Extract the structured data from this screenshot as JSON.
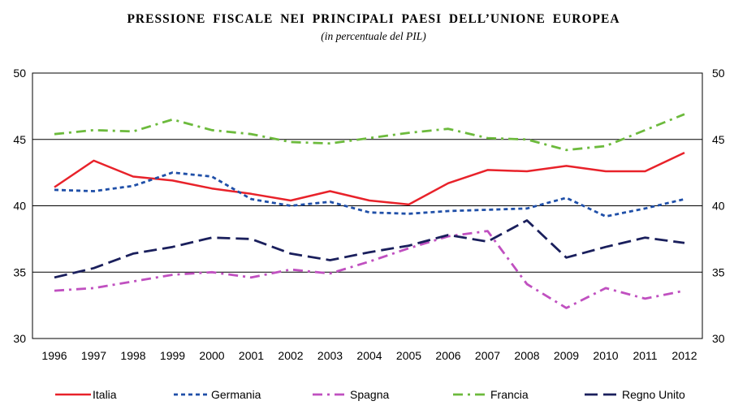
{
  "chart_data": {
    "type": "line",
    "title": "PRESSIONE FISCALE NEI PRINCIPALI PAESI DELL’UNIONE EUROPEA",
    "subtitle": "(in percentuale del PIL)",
    "xlabel": "",
    "ylabel": "",
    "ylim": [
      30,
      50
    ],
    "yticks": [
      "30",
      "35",
      "40",
      "45",
      "50"
    ],
    "categories": [
      "1996",
      "1997",
      "1998",
      "1999",
      "2000",
      "2001",
      "2002",
      "2003",
      "2004",
      "2005",
      "2006",
      "2007",
      "2008",
      "2009",
      "2010",
      "2011",
      "2012"
    ],
    "grid": "horizontal at 35, 40, 45",
    "dual_y_axis": true,
    "legend_position": "bottom",
    "series": [
      {
        "name": "Italia",
        "color": "#e8222a",
        "dash": "solid",
        "values": [
          41.4,
          43.4,
          42.2,
          41.9,
          41.3,
          40.9,
          40.4,
          41.1,
          40.4,
          40.1,
          41.7,
          42.7,
          42.6,
          43.0,
          42.6,
          42.6,
          44.0
        ]
      },
      {
        "name": "Germania",
        "color": "#1f4fa8",
        "dash": "dotted",
        "values": [
          41.2,
          41.1,
          41.5,
          42.5,
          42.2,
          40.5,
          40.0,
          40.3,
          39.5,
          39.4,
          39.6,
          39.7,
          39.8,
          40.6,
          39.2,
          39.8,
          40.5
        ]
      },
      {
        "name": "Spagna",
        "color": "#c050c0",
        "dash": "dash-dot",
        "values": [
          33.6,
          33.8,
          34.3,
          34.8,
          35.0,
          34.6,
          35.2,
          34.9,
          35.8,
          36.8,
          37.7,
          38.1,
          34.1,
          32.3,
          33.8,
          33.0,
          33.6
        ]
      },
      {
        "name": "Francia",
        "color": "#6cba3c",
        "dash": "dash-dot",
        "values": [
          45.4,
          45.7,
          45.6,
          46.5,
          45.7,
          45.4,
          44.8,
          44.7,
          45.1,
          45.5,
          45.8,
          45.1,
          45.0,
          44.2,
          44.5,
          45.7,
          46.9
        ]
      },
      {
        "name": "Regno Unito",
        "color": "#1a1f5c",
        "dash": "long-dash",
        "values": [
          34.6,
          35.3,
          36.4,
          36.9,
          37.6,
          37.5,
          36.4,
          35.9,
          36.5,
          37.0,
          37.8,
          37.3,
          38.9,
          36.1,
          36.9,
          37.6,
          37.2
        ]
      }
    ]
  }
}
